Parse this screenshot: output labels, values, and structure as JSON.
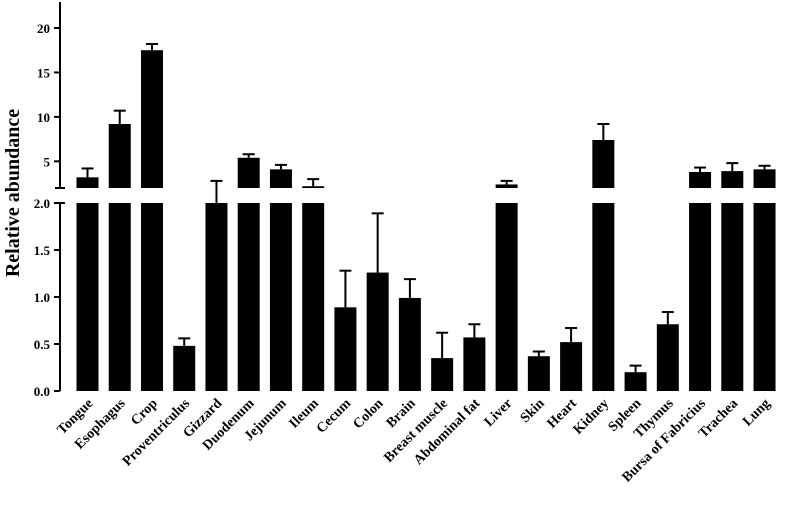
{
  "chart_data": {
    "type": "bar",
    "ylabel": "Relative abundance",
    "axis_break": {
      "lower_range": [
        0,
        2.0
      ],
      "upper_range": [
        0,
        20
      ]
    },
    "lower_ticks": [
      "0.0",
      "0.5",
      "1.0",
      "1.5",
      "2.0"
    ],
    "upper_ticks": [
      "5",
      "10",
      "15",
      "20"
    ],
    "categories": [
      "Tongue",
      "Esophagus",
      "Crop",
      "Proventriculus",
      "Gizzard",
      "Duodenum",
      "Jejunum",
      "Ileum",
      "Cecum",
      "Colon",
      "Brain",
      "Breast muscle",
      "Abdominal fat",
      "Liver",
      "Skin",
      "Heart",
      "Kidney",
      "Spleen",
      "Thymus",
      "Bursa of Fabricius",
      "Trachea",
      "Lung"
    ],
    "values": [
      3.2,
      9.2,
      17.5,
      0.48,
      2.0,
      5.4,
      4.1,
      2.2,
      0.89,
      1.26,
      0.99,
      0.35,
      0.57,
      2.4,
      0.37,
      0.52,
      7.4,
      0.2,
      0.71,
      3.8,
      3.9,
      4.1
    ],
    "errors": [
      1.0,
      1.5,
      0.7,
      0.08,
      0.8,
      0.4,
      0.5,
      0.8,
      0.39,
      0.63,
      0.2,
      0.27,
      0.14,
      0.4,
      0.05,
      0.15,
      1.8,
      0.07,
      0.13,
      0.5,
      0.9,
      0.4
    ],
    "color": "#000000"
  }
}
